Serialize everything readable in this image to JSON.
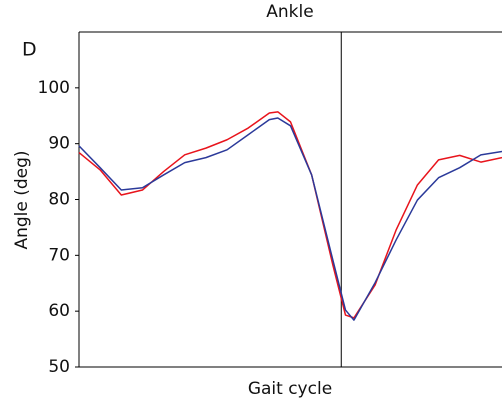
{
  "chart_data": {
    "type": "line",
    "title": "Ankle",
    "panel_label": "D",
    "x_label": "Gait cycle",
    "y_label": "Angle (deg)",
    "x": [
      0,
      5,
      10,
      15,
      20,
      25,
      30,
      35,
      40,
      45,
      47,
      50,
      55,
      60,
      63,
      65,
      70,
      75,
      80,
      85,
      90,
      95,
      100
    ],
    "xlim": [
      0,
      100
    ],
    "ylim": [
      50,
      110
    ],
    "yticks": [
      50,
      60,
      70,
      80,
      90,
      100
    ],
    "vline": 62,
    "series": [
      {
        "color": "#e8141c",
        "values": [
          88.4,
          85.3,
          80.8,
          81.7,
          85,
          88,
          89.2,
          90.7,
          92.8,
          95.5,
          95.7,
          93.9,
          84.4,
          68.3,
          59.3,
          58.8,
          64.7,
          74.6,
          82.6,
          87.1,
          87.9,
          86.7,
          87.5
        ]
      },
      {
        "color": "#2b3a9a",
        "values": [
          89.6,
          85.7,
          81.7,
          82.1,
          84.4,
          86.6,
          87.5,
          88.9,
          91.6,
          94.3,
          94.6,
          93.2,
          84.4,
          69.2,
          60.2,
          58.4,
          65.1,
          72.8,
          79.9,
          83.9,
          85.7,
          88,
          88.6
        ]
      }
    ]
  }
}
